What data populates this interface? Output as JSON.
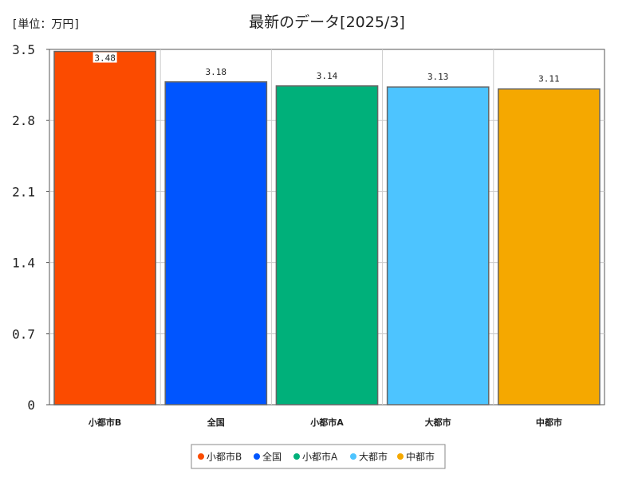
{
  "chart_data": {
    "type": "bar",
    "title": "最新のデータ[2025/3]",
    "unit_label": "[単位：万円]",
    "categories": [
      "小都市B",
      "全国",
      "小都市A",
      "大都市",
      "中都市"
    ],
    "values": [
      3.48,
      3.18,
      3.14,
      3.13,
      3.11
    ],
    "value_labels": [
      "3.48",
      "3.18",
      "3.14",
      "3.13",
      "3.11"
    ],
    "colors": [
      "#fb4b00",
      "#0055ff",
      "#00b07a",
      "#4dc4ff",
      "#f5a800"
    ],
    "ylim": [
      0,
      3.5
    ],
    "yticks": [
      0,
      0.7,
      1.4,
      2.1,
      2.8,
      3.5
    ],
    "ytick_labels": [
      "0",
      "0.7",
      "1.4",
      "2.1",
      "2.8",
      "3.5"
    ],
    "grid": true,
    "legend": {
      "placement": "bottom-center",
      "entries": [
        "小都市B",
        "全国",
        "小都市A",
        "大都市",
        "中都市"
      ]
    }
  }
}
